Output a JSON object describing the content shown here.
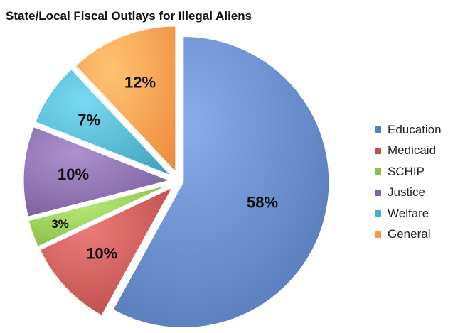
{
  "chart_data": {
    "type": "pie",
    "title": "State/Local Fiscal Outlays for Illegal Aliens",
    "slices": [
      {
        "label": "Education",
        "value": 58,
        "display": "58%",
        "color": "#5b7fbd"
      },
      {
        "label": "Medicaid",
        "value": 10,
        "display": "10%",
        "color": "#c0504d"
      },
      {
        "label": "SCHIP",
        "value": 3,
        "display": "3%",
        "color": "#8bbe4a"
      },
      {
        "label": "Justice",
        "value": 10,
        "display": "10%",
        "color": "#8064a2"
      },
      {
        "label": "Welfare",
        "value": 7,
        "display": "7%",
        "color": "#4bacc6"
      },
      {
        "label": "General",
        "value": 12,
        "display": "12%",
        "color": "#f79646"
      }
    ],
    "legend_position": "right",
    "start_angle": "12 o'clock, clockwise",
    "exploded": true
  }
}
